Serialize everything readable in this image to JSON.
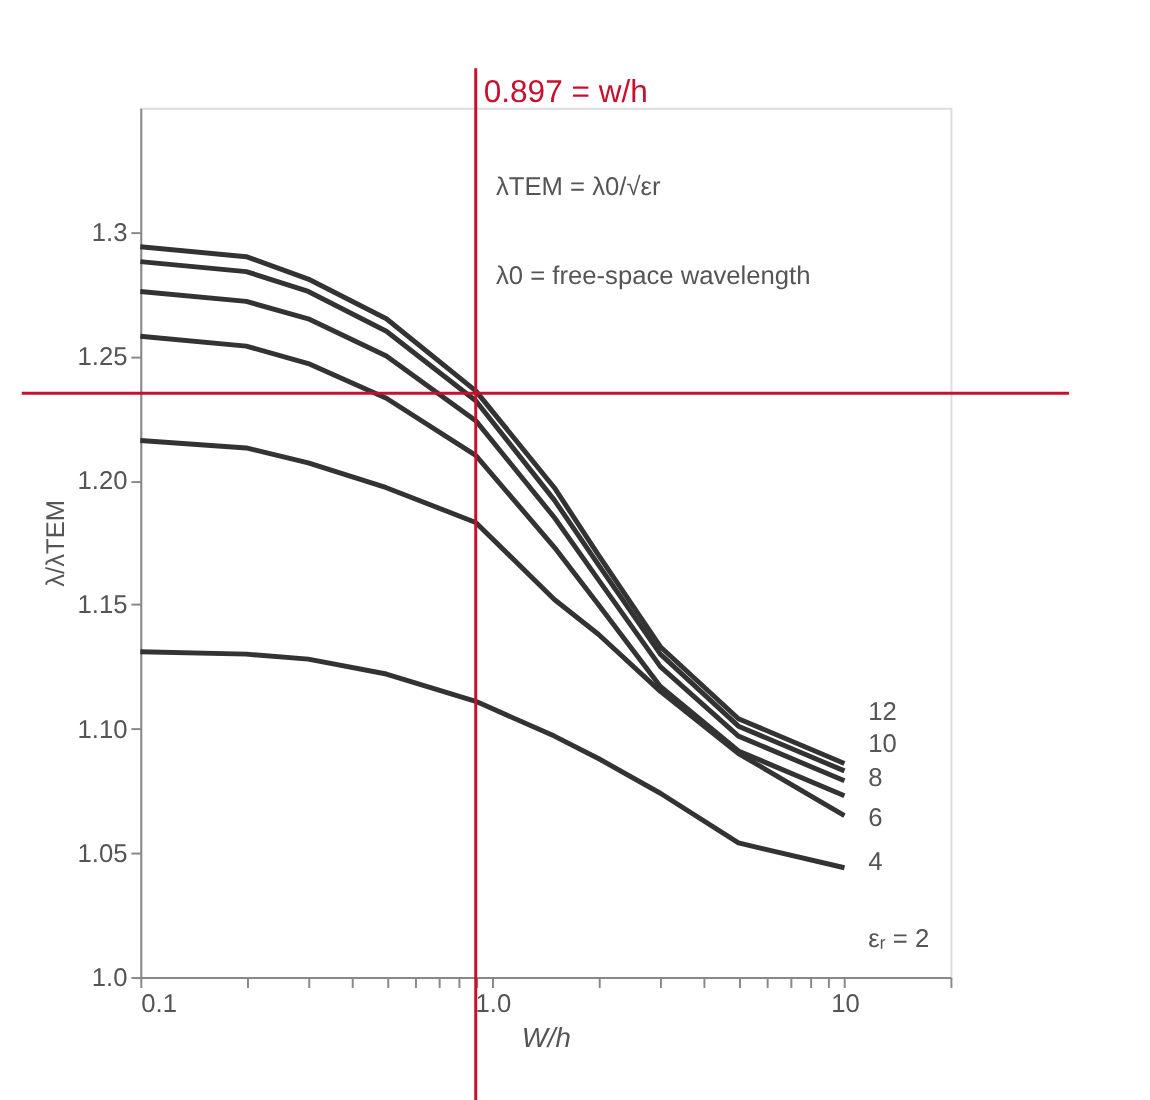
{
  "chart_data": {
    "type": "line",
    "xlabel": "W/h",
    "ylabel": "λ/λTEM",
    "annotations": [
      "λTEM = λ0/√εr",
      "λ0 = free-space wavelength"
    ],
    "x": [
      0.1,
      0.2,
      0.3,
      0.5,
      0.897,
      1.5,
      2,
      3,
      5,
      10
    ],
    "series": [
      {
        "name": "12",
        "color": "#333333",
        "values": [
          1.294,
          1.29,
          1.281,
          1.265,
          1.236,
          1.197,
          1.17,
          1.133,
          1.104,
          1.086
        ]
      },
      {
        "name": "10",
        "color": "#333333",
        "values": [
          1.288,
          1.284,
          1.276,
          1.26,
          1.232,
          1.192,
          1.166,
          1.13,
          1.101,
          1.083
        ]
      },
      {
        "name": "8",
        "color": "#333333",
        "values": [
          1.276,
          1.272,
          1.265,
          1.25,
          1.224,
          1.185,
          1.16,
          1.125,
          1.097,
          1.079
        ]
      },
      {
        "name": "6",
        "color": "#333333",
        "values": [
          1.258,
          1.254,
          1.247,
          1.233,
          1.21,
          1.173,
          1.15,
          1.117,
          1.091,
          1.073
        ]
      },
      {
        "name": "4",
        "color": "#333333",
        "values": [
          1.216,
          1.213,
          1.207,
          1.197,
          1.183,
          1.152,
          1.138,
          1.115,
          1.09,
          1.065
        ]
      },
      {
        "name": "εᵣ = 2",
        "color": "#333333",
        "values": [
          1.131,
          1.13,
          1.128,
          1.122,
          1.111,
          1.097,
          1.088,
          1.074,
          1.054,
          1.044
        ]
      }
    ],
    "log": "x",
    "xlim": [
      0.1,
      20
    ],
    "ylim": [
      1.0,
      1.35
    ],
    "xticks": [
      0.1,
      {
        "value": 0.2,
        "label": null
      },
      {
        "value": 0.3,
        "label": null
      },
      {
        "value": 0.4,
        "label": null
      },
      {
        "value": 0.5,
        "label": null
      },
      {
        "value": 0.6,
        "label": null
      },
      {
        "value": 0.7,
        "label": null
      },
      {
        "value": 0.8,
        "label": null
      },
      {
        "value": 0.9,
        "label": null
      },
      {
        "value": 1,
        "label": "1.0"
      },
      {
        "value": 2,
        "label": null
      },
      {
        "value": 3,
        "label": null
      },
      {
        "value": 4,
        "label": null
      },
      {
        "value": 5,
        "label": null
      },
      {
        "value": 6,
        "label": null
      },
      {
        "value": 7,
        "label": null
      },
      {
        "value": 8,
        "label": null
      },
      {
        "value": 9,
        "label": null
      },
      10,
      {
        "value": 20,
        "label": null
      }
    ],
    "yticks": [
      {
        "value": 1.0,
        "label": "1.0"
      },
      1.05,
      {
        "value": 1.1,
        "label": "1.10"
      },
      1.15,
      {
        "value": 1.2,
        "label": "1.20"
      },
      1.25,
      1.3
    ],
    "ref_lines": [
      {
        "axis": "x",
        "value": 0.897,
        "label": "0.897 = w/h",
        "color": "#c8102e"
      },
      {
        "axis": "y",
        "value": 1.235,
        "label": null,
        "color": "#c8102e"
      }
    ],
    "grid": false,
    "legend": false,
    "line_style": "solid",
    "marker": "none"
  }
}
